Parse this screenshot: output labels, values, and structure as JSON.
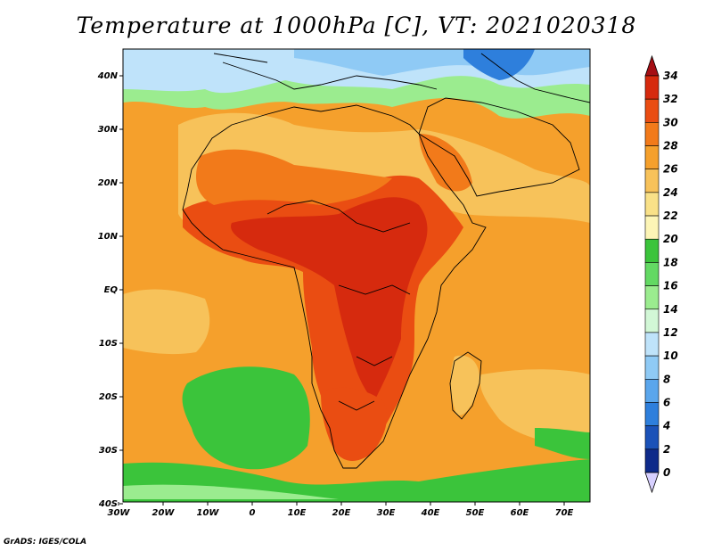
{
  "title": "Temperature at 1000hPa [C], VT: 2021020318",
  "footer": "GrADS: IGES/COLA",
  "map": {
    "lon_ticks": [
      "30W",
      "20W",
      "10W",
      "0",
      "10E",
      "20E",
      "30E",
      "40E",
      "50E",
      "60E",
      "70E"
    ],
    "lat_ticks": [
      "40N",
      "30N",
      "20N",
      "10N",
      "EQ",
      "10S",
      "20S",
      "30S",
      "40S"
    ]
  },
  "colorbar": {
    "levels": [
      "34",
      "32",
      "30",
      "28",
      "26",
      "24",
      "22",
      "20",
      "18",
      "16",
      "14",
      "12",
      "10",
      "8",
      "6",
      "4",
      "2",
      "0"
    ],
    "colors": [
      "#a50f15",
      "#d62a0e",
      "#ea4d12",
      "#f27a1a",
      "#f5a02c",
      "#f7c25a",
      "#f9e188",
      "#fdf5b6",
      "#3bc43b",
      "#63d963",
      "#9bec8f",
      "#d2f7d6",
      "#bfe3fa",
      "#8fcaf5",
      "#5aa6ec",
      "#2e7fdc",
      "#1b52b8",
      "#0e2a8a",
      "#0a1660"
    ]
  }
}
